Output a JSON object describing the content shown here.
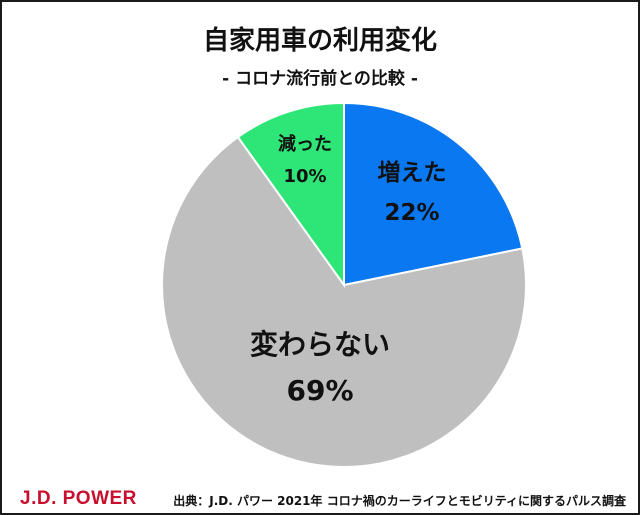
{
  "chart_data": {
    "type": "pie",
    "title": "自家用車の利用変化",
    "subtitle": "- コロナ流行前との比較 -",
    "slices": [
      {
        "label": "増えた",
        "value": 22,
        "value_label": "22%",
        "color": "#0a78f0"
      },
      {
        "label": "変わらない",
        "value": 69,
        "value_label": "69%",
        "color": "#bfbfbf"
      },
      {
        "label": "減った",
        "value": 10,
        "value_label": "10%",
        "color": "#2ee677"
      }
    ],
    "start_angle": "12 o'clock",
    "direction": "clockwise",
    "legend": "none"
  },
  "footer": {
    "brand": "J.D. POWER",
    "source": "出典：J.D. パワー 2021年 コロナ禍のカーライフとモビリティに関するパルス調査"
  }
}
